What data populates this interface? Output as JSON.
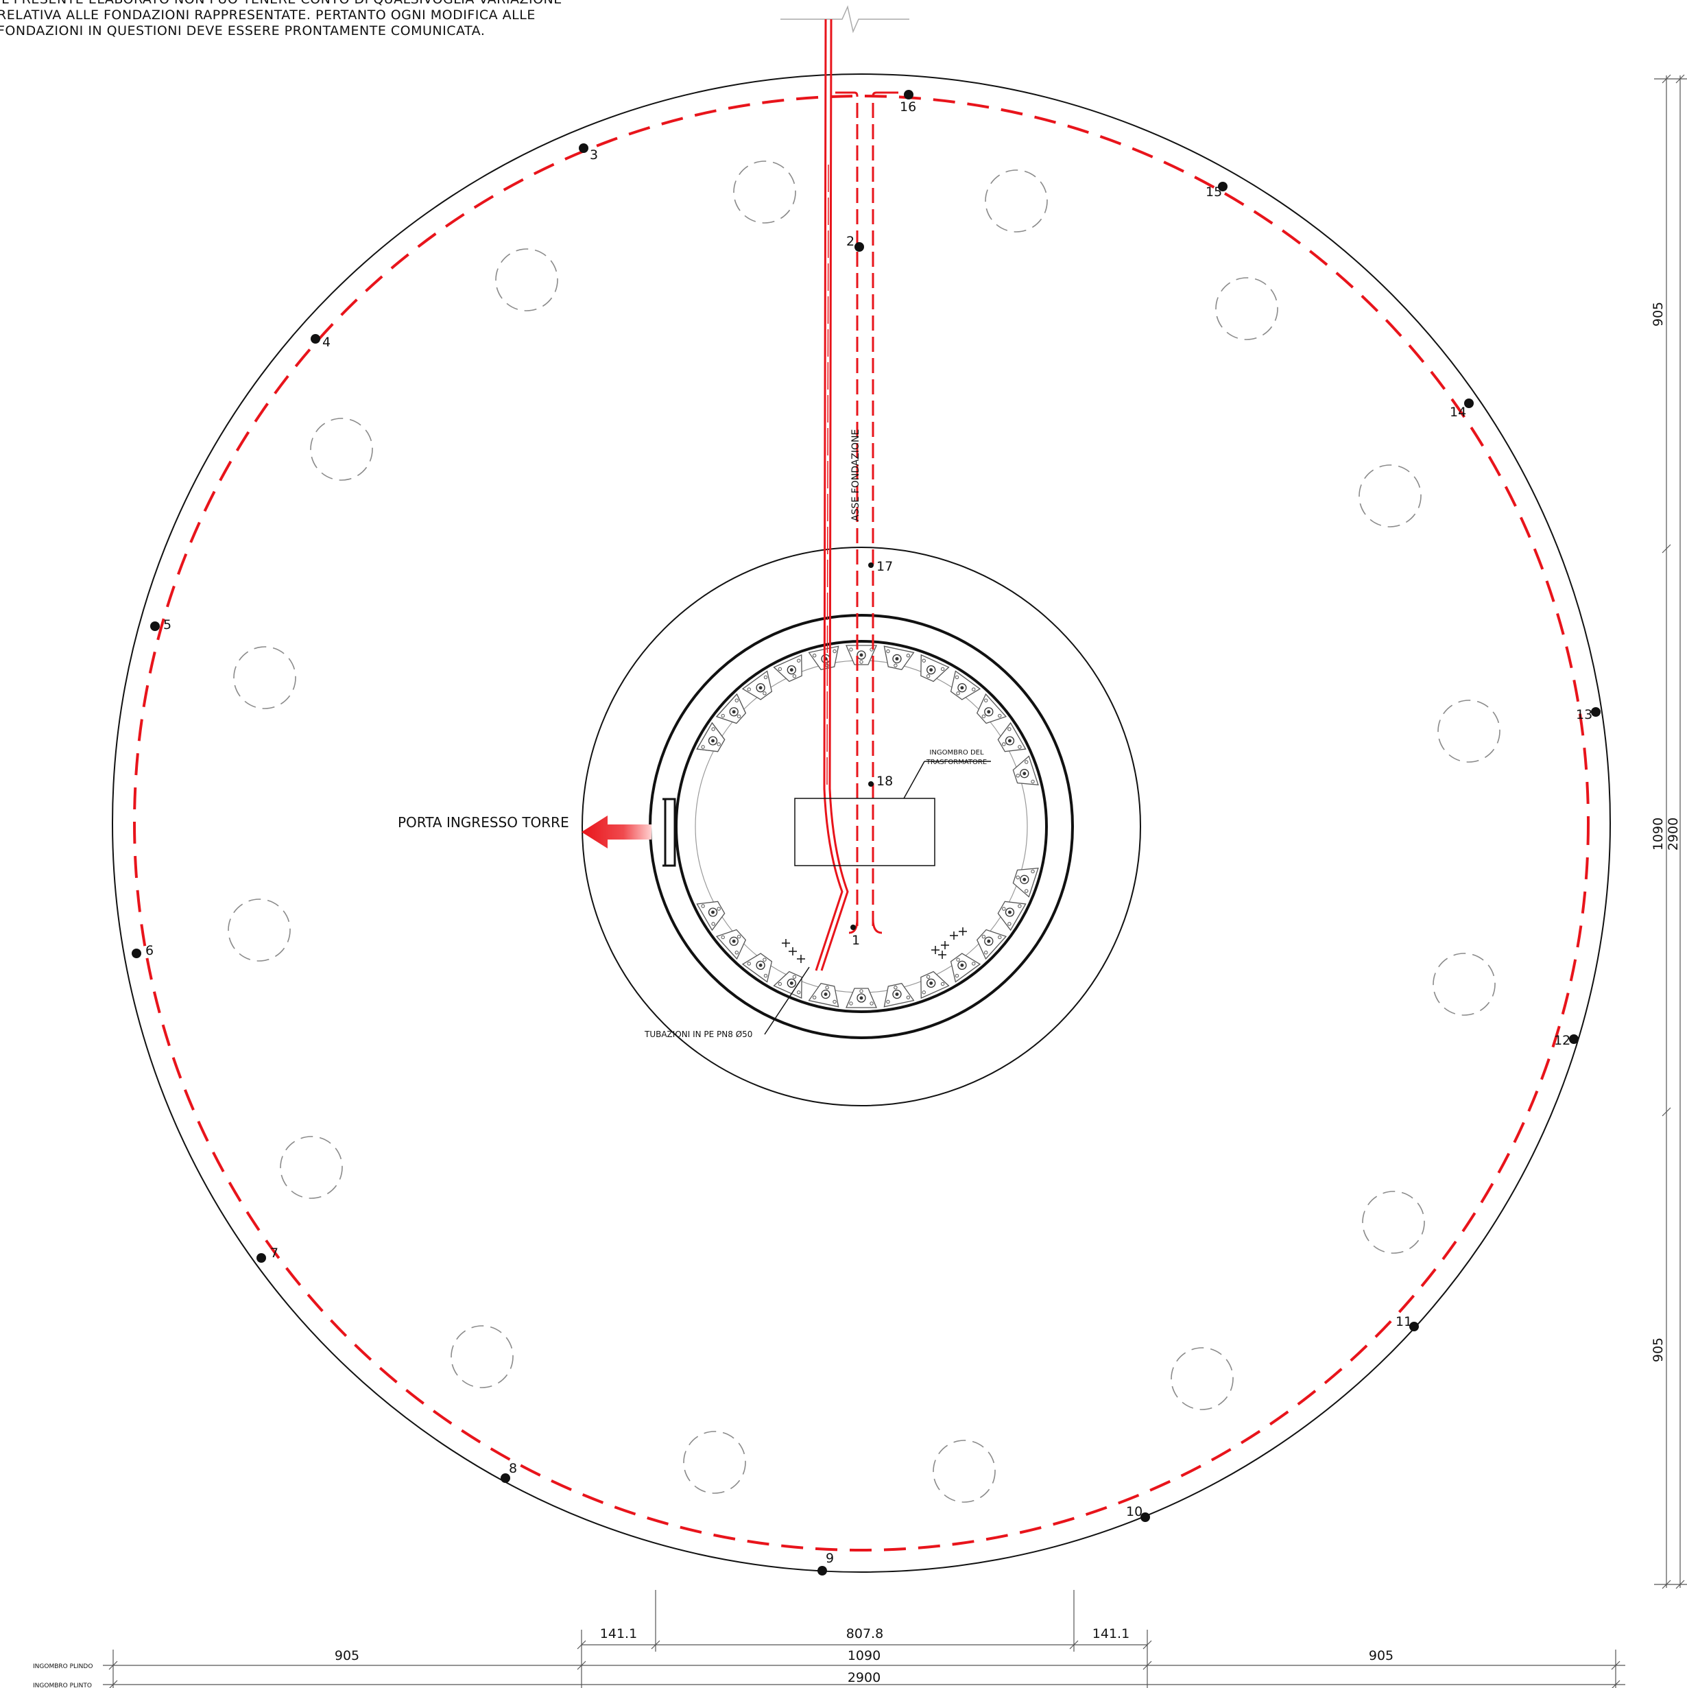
{
  "note": {
    "lines": [
      "IL PRESENTE ELABORATO NON PUO TENERE CONTO DI QUALSIVOGLIA VARIAZIONE",
      "RELATIVA ALLE FONDAZIONI RAPPRESENTATE. PERTANTO OGNI MODIFICA ALLE",
      "FONDAZIONI IN QUESTIONI DEVE ESSERE PRONTAMENTE COMUNICATA."
    ]
  },
  "labels": {
    "entrance": "PORTA INGRESSO TORRE",
    "axis": "ASSE FONDAZIONE",
    "transformer_line1": "INGOMBRO DEL",
    "transformer_line2": "TRASFORMATORE",
    "pipes": "TUBAZIONI IN PE PN8 Ø50"
  },
  "grounding_points": [
    "1",
    "2",
    "3",
    "4",
    "5",
    "6",
    "7",
    "8",
    "9",
    "10",
    "11",
    "12",
    "13",
    "14",
    "15",
    "16",
    "17",
    "18"
  ],
  "bottom_dimensions": {
    "row1": [
      "141.1",
      "807.8",
      "141.1"
    ],
    "row2": [
      "905",
      "1090",
      "905"
    ],
    "row3": [
      "2900"
    ],
    "row2_label": "INGOMBRO PLINDO",
    "row3_label": "INGOMBRO PLINTO"
  },
  "right_dimensions": {
    "segments": [
      "905",
      "1090",
      "905"
    ],
    "total": "2900"
  },
  "colors": {
    "line": "#111111",
    "red": "#e8141b",
    "pile": "#8a8a8a"
  }
}
